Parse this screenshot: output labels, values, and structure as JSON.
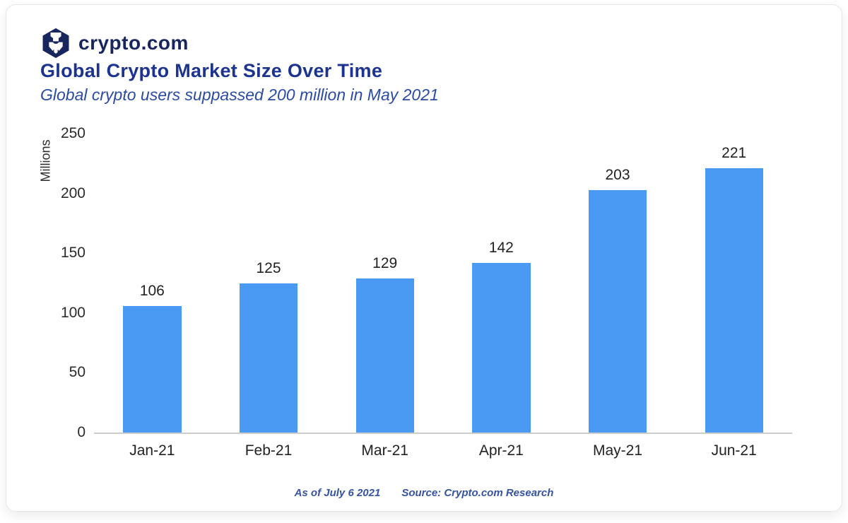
{
  "brand": {
    "name": "crypto.com",
    "logo_icon": "crypto-com-lion-hexagon"
  },
  "title": "Global Crypto Market Size Over Time",
  "subtitle": "Global crypto users suppassed 200 million in May 2021",
  "footer": {
    "as_of": "As of July 6 2021",
    "source": "Source: Crypto.com Research"
  },
  "colors": {
    "navy_logo": "#17265C",
    "navy_title": "#1C3490",
    "navy_subtitle": "#2A4AA4",
    "bar_blue": "#4A99F2",
    "axis_text": "#2B2B2B",
    "axis_line": "#CDCDCD",
    "footer_text": "#36539F"
  },
  "chart_data": {
    "type": "bar",
    "categories": [
      "Jan-21",
      "Feb-21",
      "Mar-21",
      "Apr-21",
      "May-21",
      "Jun-21"
    ],
    "values": [
      106,
      125,
      129,
      142,
      203,
      221
    ],
    "title": "Global Crypto Market Size Over Time",
    "subtitle": "Global crypto users suppassed 200 million in May 2021",
    "xlabel": "",
    "ylabel": "Millions",
    "ylim": [
      0,
      250
    ],
    "yticks": [
      250,
      200,
      150,
      100,
      50,
      0
    ],
    "grid": false,
    "legend": "none",
    "data_labels": true,
    "bar_color": "#4A99F2"
  }
}
